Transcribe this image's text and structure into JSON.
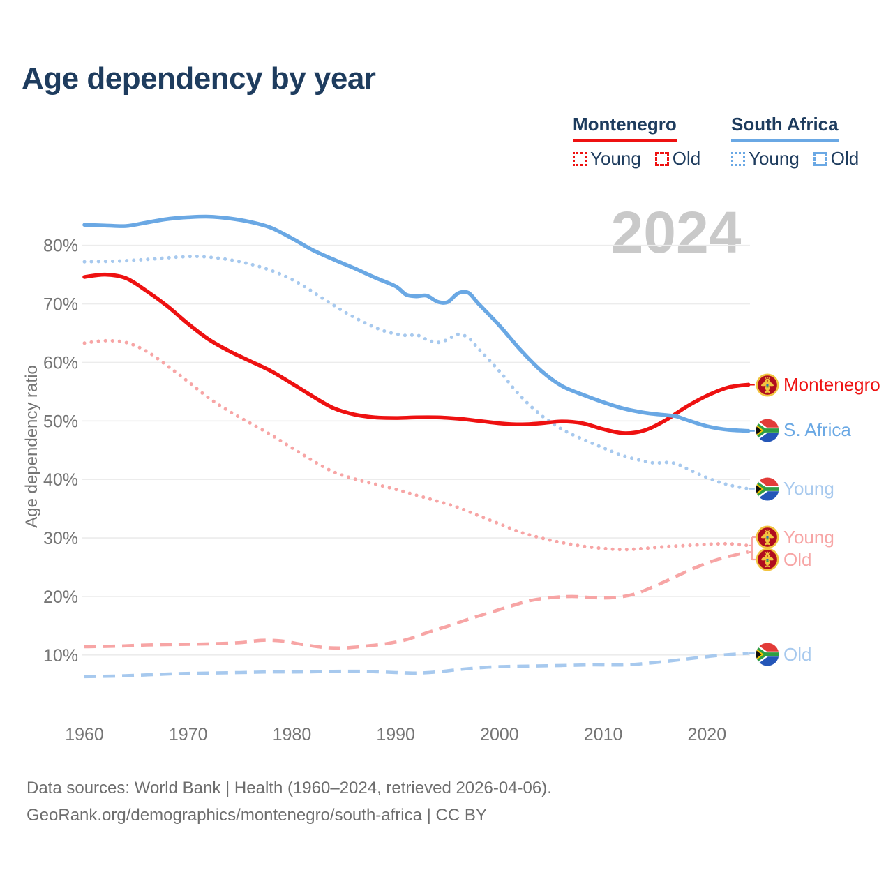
{
  "title": "Age dependency by year",
  "watermark": "2024",
  "y_axis": {
    "title": "Age dependency ratio"
  },
  "footer": {
    "line1": "Data sources: World Bank | Health (1960–2024, retrieved 2026-04-06).",
    "line2": "GeoRank.org/demographics/montenegro/south-africa | CC BY"
  },
  "colors": {
    "montenegro_solid": "#ee1111",
    "montenegro_light": "#f7a5a5",
    "south_africa_solid": "#6aa8e4",
    "south_africa_light": "#a7c9ee",
    "heading_navy": "#1e3c5e",
    "axis_gray": "#757575",
    "gridline": "#ececec",
    "watermark_gray": "#c9c9c9"
  },
  "legend": {
    "groups": [
      {
        "name": "Montenegro",
        "color": "#ee1111",
        "items": [
          {
            "label": "Young",
            "style": "dotted"
          },
          {
            "label": "Old",
            "style": "dashed"
          }
        ]
      },
      {
        "name": "South Africa",
        "color": "#6aa8e4",
        "items": [
          {
            "label": "Young",
            "style": "dotted"
          },
          {
            "label": "Old",
            "style": "dashed"
          }
        ]
      }
    ]
  },
  "right_labels": [
    {
      "id": "me_total",
      "text": "Montenegro",
      "flag": "montenegro",
      "color": "#ee1111"
    },
    {
      "id": "za_total",
      "text": "S. Africa",
      "flag": "south-africa",
      "color": "#6aa8e4"
    },
    {
      "id": "za_young",
      "text": "Young",
      "flag": "south-africa",
      "color": "#a7c9ee"
    },
    {
      "id": "me_young",
      "text": "Young",
      "flag": "montenegro",
      "color": "#f7a5a5"
    },
    {
      "id": "me_old",
      "text": "Old",
      "flag": "montenegro",
      "color": "#f7a5a5"
    },
    {
      "id": "za_old",
      "text": "Old",
      "flag": "south-africa",
      "color": "#a7c9ee"
    }
  ],
  "chart_data": {
    "type": "line",
    "title": "Age dependency by year",
    "xlabel": "",
    "ylabel": "Age dependency ratio",
    "x_ticks": [
      1960,
      1970,
      1980,
      1990,
      2000,
      2010,
      2020
    ],
    "y_ticks": [
      10,
      20,
      30,
      40,
      50,
      60,
      70,
      80
    ],
    "y_tick_suffix": "%",
    "xlim": [
      1960,
      2024
    ],
    "ylim": [
      3,
      88
    ],
    "grid": "horizontal",
    "legend_position": "top-right",
    "watermark": "2024",
    "series": [
      {
        "id": "za_old",
        "name": "South Africa — Old",
        "label": "Old",
        "color": "#a7c9ee",
        "line_style": "dashed",
        "years": [
          1960,
          1963,
          1966,
          1969,
          1972,
          1975,
          1978,
          1981,
          1984,
          1987,
          1990,
          1992,
          1994,
          1996,
          1998,
          2000,
          2003,
          2006,
          2009,
          2012,
          2015,
          2018,
          2021,
          2024
        ],
        "values": [
          6.3,
          6.4,
          6.6,
          6.8,
          6.9,
          7.0,
          7.1,
          7.1,
          7.2,
          7.2,
          7.0,
          6.9,
          7.1,
          7.5,
          7.8,
          8.0,
          8.1,
          8.2,
          8.3,
          8.3,
          8.7,
          9.3,
          9.9,
          10.3
        ]
      },
      {
        "id": "me_old",
        "name": "Montenegro — Old",
        "label": "Old",
        "color": "#f7a5a5",
        "line_style": "dashed",
        "years": [
          1960,
          1963,
          1966,
          1969,
          1972,
          1975,
          1977,
          1979,
          1981,
          1983,
          1985,
          1987,
          1989,
          1991,
          1993,
          1995,
          1997,
          1999,
          2001,
          2003,
          2005,
          2007,
          2009,
          2011,
          2013,
          2015,
          2017,
          2019,
          2021,
          2023,
          2024
        ],
        "values": [
          11.4,
          11.5,
          11.7,
          11.8,
          11.9,
          12.1,
          12.5,
          12.4,
          11.8,
          11.3,
          11.2,
          11.5,
          11.9,
          12.6,
          13.8,
          14.9,
          16.1,
          17.2,
          18.3,
          19.3,
          19.8,
          20.0,
          19.8,
          19.8,
          20.4,
          21.8,
          23.4,
          25.0,
          26.3,
          27.2,
          27.6
        ]
      },
      {
        "id": "me_young",
        "name": "Montenegro — Young",
        "label": "Young",
        "color": "#f7a5a5",
        "line_style": "dotted",
        "years": [
          1960,
          1962,
          1964,
          1966,
          1968,
          1970,
          1972,
          1974,
          1976,
          1978,
          1980,
          1982,
          1984,
          1986,
          1988,
          1990,
          1992,
          1994,
          1996,
          1998,
          2000,
          2002,
          2004,
          2006,
          2008,
          2010,
          2012,
          2014,
          2016,
          2018,
          2020,
          2022,
          2024
        ],
        "values": [
          63.3,
          63.7,
          63.4,
          61.9,
          59.4,
          56.7,
          53.9,
          51.6,
          49.6,
          47.6,
          45.4,
          43.2,
          41.3,
          40.1,
          39.2,
          38.3,
          37.3,
          36.3,
          35.2,
          33.8,
          32.4,
          31.0,
          30.0,
          29.2,
          28.6,
          28.2,
          28.0,
          28.2,
          28.5,
          28.7,
          28.9,
          29.0,
          28.7
        ]
      },
      {
        "id": "za_young",
        "name": "South Africa — Young",
        "label": "Young",
        "color": "#a7c9ee",
        "line_style": "dotted",
        "years": [
          1960,
          1963,
          1966,
          1969,
          1971,
          1973,
          1975,
          1977,
          1979,
          1981,
          1983,
          1985,
          1987,
          1989,
          1991,
          1992,
          1993,
          1994,
          1995,
          1996,
          1997,
          1998,
          2000,
          2002,
          2004,
          2006,
          2008,
          2010,
          2012,
          2014,
          2015,
          2016,
          2017,
          2018,
          2020,
          2022,
          2024
        ],
        "values": [
          77.2,
          77.3,
          77.6,
          78.0,
          78.1,
          77.8,
          77.2,
          76.3,
          75.0,
          73.2,
          70.9,
          68.7,
          66.8,
          65.3,
          64.6,
          64.7,
          63.9,
          63.4,
          63.9,
          64.8,
          64.2,
          62.3,
          58.5,
          54.3,
          51.0,
          48.6,
          46.9,
          45.4,
          44.0,
          43.1,
          42.8,
          42.9,
          42.7,
          41.9,
          40.3,
          39.1,
          38.4
        ]
      },
      {
        "id": "me_total",
        "name": "Montenegro — total",
        "label": "Montenegro",
        "color": "#ee1111",
        "line_style": "solid",
        "years": [
          1960,
          1962,
          1964,
          1966,
          1968,
          1970,
          1972,
          1974,
          1976,
          1978,
          1980,
          1982,
          1984,
          1986,
          1988,
          1990,
          1992,
          1994,
          1996,
          1998,
          2000,
          2002,
          2004,
          2006,
          2008,
          2010,
          2012,
          2014,
          2016,
          2018,
          2020,
          2022,
          2024
        ],
        "values": [
          74.6,
          75.0,
          74.4,
          72.2,
          69.6,
          66.6,
          63.9,
          61.9,
          60.2,
          58.5,
          56.4,
          54.2,
          52.2,
          51.1,
          50.6,
          50.5,
          50.6,
          50.6,
          50.4,
          50.0,
          49.6,
          49.4,
          49.6,
          49.9,
          49.6,
          48.6,
          47.9,
          48.4,
          50.1,
          52.4,
          54.3,
          55.7,
          56.2
        ]
      },
      {
        "id": "za_total",
        "name": "South Africa — total",
        "label": "S. Africa",
        "color": "#6aa8e4",
        "line_style": "solid",
        "years": [
          1960,
          1962,
          1964,
          1966,
          1968,
          1970,
          1972,
          1974,
          1976,
          1978,
          1980,
          1982,
          1984,
          1986,
          1988,
          1990,
          1991,
          1992,
          1993,
          1994,
          1995,
          1996,
          1997,
          1998,
          2000,
          2002,
          2004,
          2006,
          2008,
          2010,
          2012,
          2014,
          2016,
          2017,
          2018,
          2020,
          2022,
          2024
        ],
        "values": [
          83.5,
          83.4,
          83.3,
          83.9,
          84.5,
          84.8,
          84.9,
          84.6,
          84.0,
          83.0,
          81.2,
          79.2,
          77.6,
          76.1,
          74.5,
          73.0,
          71.6,
          71.3,
          71.4,
          70.4,
          70.3,
          71.8,
          71.9,
          70.0,
          66.3,
          62.2,
          58.6,
          56.0,
          54.5,
          53.2,
          52.1,
          51.4,
          51.0,
          50.8,
          50.2,
          49.1,
          48.5,
          48.3
        ]
      }
    ]
  }
}
